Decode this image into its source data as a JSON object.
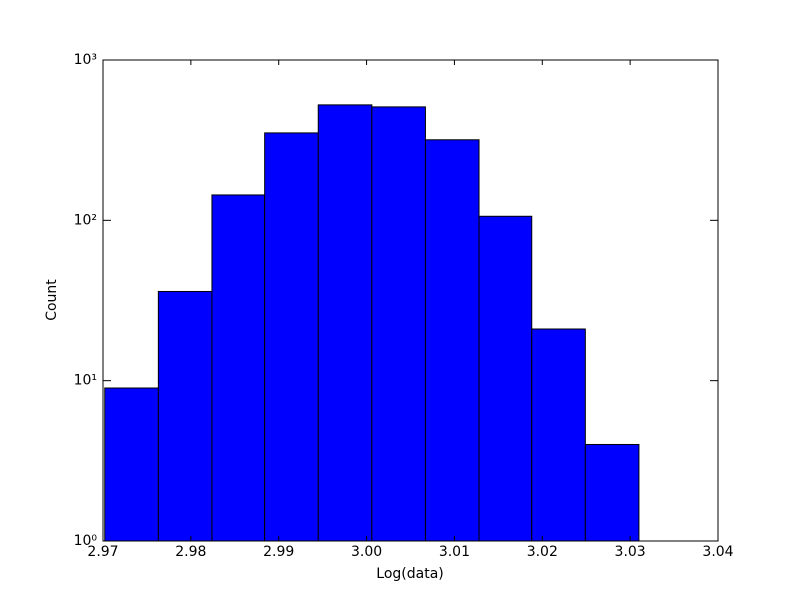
{
  "chart_data": {
    "type": "histogram",
    "xlabel": "Log(data)",
    "ylabel": "Count",
    "bins": [
      2.9702,
      2.9763,
      2.9824,
      2.9884,
      2.9945,
      3.0006,
      3.0067,
      3.0128,
      3.0188,
      3.0249,
      3.031
    ],
    "values": [
      9,
      36,
      144,
      351,
      525,
      510,
      318,
      106,
      21,
      4
    ],
    "color": "#0000ff",
    "edgecolor": "#000000",
    "xlim": [
      2.97,
      3.04
    ],
    "xticks": [
      2.97,
      2.98,
      2.99,
      {
        "value": 3,
        "label": "3.00"
      },
      3.01,
      3.02,
      3.03,
      3.04
    ],
    "ylim": [
      1,
      1000
    ],
    "yscale": "log",
    "yticks": [
      {
        "value": 1,
        "label": "10⁰"
      },
      {
        "value": 10,
        "label": "10¹"
      },
      {
        "value": 100,
        "label": "10²"
      },
      {
        "value": 1000,
        "label": "10³"
      }
    ]
  }
}
